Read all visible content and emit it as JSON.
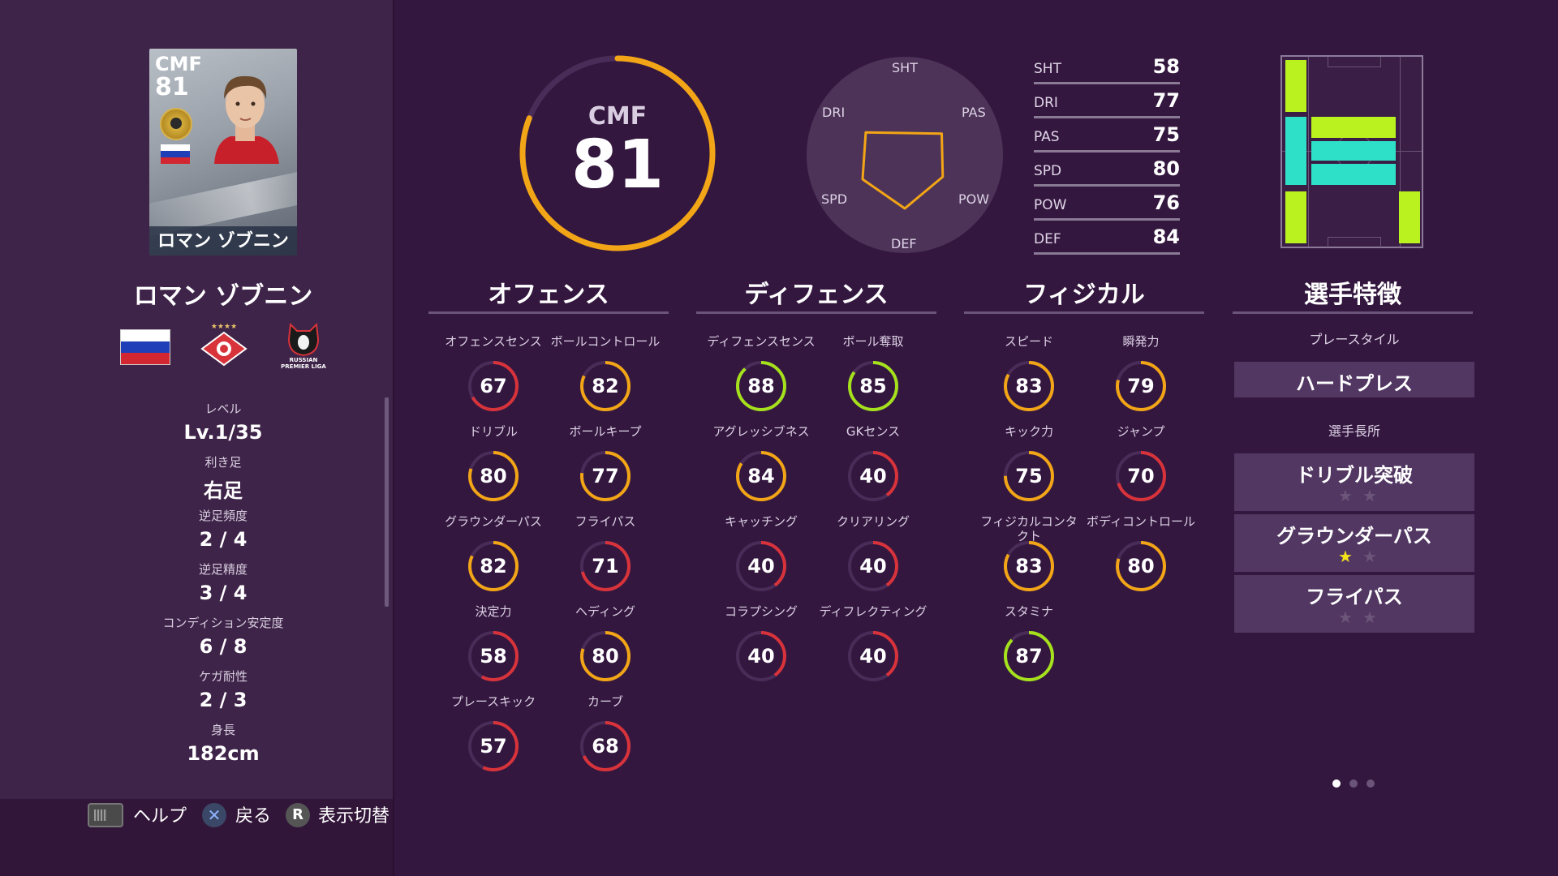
{
  "player": {
    "card_position": "CMF",
    "card_rating": "81",
    "card_name": "ロマン ゾブニン",
    "name": "ロマン ゾブニン",
    "club_badge_stars": "★★★★",
    "league_badge_text": "RUSSIAN PREMIER LIGA"
  },
  "profile": [
    {
      "label": "レベル",
      "value": "Lv.1/35"
    },
    {
      "label": "利き足",
      "value": "右足"
    },
    {
      "label": "逆足頻度",
      "value": "2 / 4"
    },
    {
      "label": "逆足精度",
      "value": "3 / 4"
    },
    {
      "label": "コンディション安定度",
      "value": "6 / 8"
    },
    {
      "label": "ケガ耐性",
      "value": "2 / 3"
    },
    {
      "label": "身長",
      "value": "182cm"
    }
  ],
  "overall": {
    "position": "CMF",
    "rating": "81",
    "value": 81
  },
  "radar": {
    "labels": {
      "sht": "SHT",
      "pas": "PAS",
      "pow": "POW",
      "def": "DEF",
      "spd": "SPD",
      "dri": "DRI"
    }
  },
  "summary_stats": [
    {
      "label": "SHT",
      "value": "58"
    },
    {
      "label": "DRI",
      "value": "77"
    },
    {
      "label": "PAS",
      "value": "75"
    },
    {
      "label": "SPD",
      "value": "80"
    },
    {
      "label": "POW",
      "value": "76"
    },
    {
      "label": "DEF",
      "value": "84"
    }
  ],
  "sections": {
    "offense": "オフェンス",
    "defense": "ディフェンス",
    "physical": "フィジカル",
    "traits": "選手特徴"
  },
  "offense_stats": [
    {
      "label": "オフェンスセンス",
      "value": "67"
    },
    {
      "label": "ボールコントロール",
      "value": "82"
    },
    {
      "label": "ドリブル",
      "value": "80"
    },
    {
      "label": "ボールキープ",
      "value": "77"
    },
    {
      "label": "グラウンダーパス",
      "value": "82"
    },
    {
      "label": "フライパス",
      "value": "71"
    },
    {
      "label": "決定力",
      "value": "58"
    },
    {
      "label": "ヘディング",
      "value": "80"
    },
    {
      "label": "プレースキック",
      "value": "57"
    },
    {
      "label": "カーブ",
      "value": "68"
    }
  ],
  "defense_stats": [
    {
      "label": "ディフェンスセンス",
      "value": "88"
    },
    {
      "label": "ボール奪取",
      "value": "85"
    },
    {
      "label": "アグレッシブネス",
      "value": "84"
    },
    {
      "label": "GKセンス",
      "value": "40"
    },
    {
      "label": "キャッチング",
      "value": "40"
    },
    {
      "label": "クリアリング",
      "value": "40"
    },
    {
      "label": "コラプシング",
      "value": "40"
    },
    {
      "label": "ディフレクティング",
      "value": "40"
    }
  ],
  "physical_stats": [
    {
      "label": "スピード",
      "value": "83"
    },
    {
      "label": "瞬発力",
      "value": "79"
    },
    {
      "label": "キック力",
      "value": "75"
    },
    {
      "label": "ジャンプ",
      "value": "70"
    },
    {
      "label": "フィジカルコンタ",
      "label2": "クト",
      "value": "83"
    },
    {
      "label": "ボディコントロール",
      "value": "80"
    },
    {
      "label": "スタミナ",
      "value": "87"
    }
  ],
  "traits": {
    "playstyle_label": "プレースタイル",
    "playstyle": "ハードプレス",
    "skills_label": "選手長所",
    "skills": [
      {
        "name": "ドリブル突破",
        "stars": 0
      },
      {
        "name": "グラウンダーパス",
        "stars": 1
      },
      {
        "name": "フライパス",
        "stars": 0
      }
    ]
  },
  "footer": {
    "help_label": "ヘルプ",
    "back_label": "戻る",
    "back_glyph": "✕",
    "toggle_label": "表示切替",
    "toggle_glyph": "R"
  },
  "colors": {
    "background": "#34173f",
    "ring_orange": "#f2a516",
    "ring_green": "#a5e11c",
    "ring_red": "#d8333a",
    "field_lime": "#b9f21f",
    "field_cyan": "#2ee0c7"
  }
}
